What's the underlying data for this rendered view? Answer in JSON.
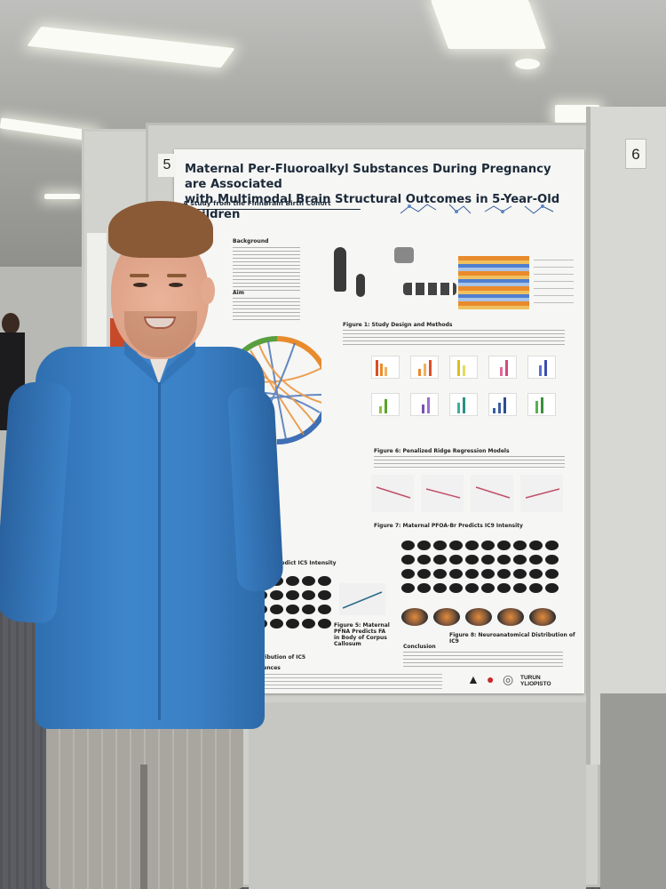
{
  "poster": {
    "board_number": "5",
    "neighbor_board_number": "6",
    "title_line1": "Maternal Per-Fluoroalkyl Substances During Pregnancy are Associated",
    "title_line2": "with Multimodal Brain Structural Outcomes in 5-Year-Old Children",
    "subtitle": "A study from the FinnBrain Birth Cohort",
    "sections": {
      "background": "Background",
      "aim": "Aim",
      "fig1": "Figure 1: Study Design and Methods",
      "fig6": "Figure 6: Penalized Ridge Regression Models",
      "fig7": "Figure 7: Maternal PFOA-Br Predicts IC9 Intensity",
      "fig4": "and PFOA-L Predict IC5 Intensity",
      "fig5": "Figure 5: Maternal PFNA Predicts FA in Body of Corpus Callosum",
      "fig8": "Figure 8: Neuroanatomical Distribution of IC9",
      "fig3": "Distribution of IC5",
      "conclusion": "Conclusion",
      "references": "References"
    },
    "logo_text": "TURUN YLIOPISTO",
    "colors": {
      "title": "#1c2a3a",
      "chord_orange": "#e98b2c",
      "chord_blue": "#3f6fb5"
    }
  }
}
